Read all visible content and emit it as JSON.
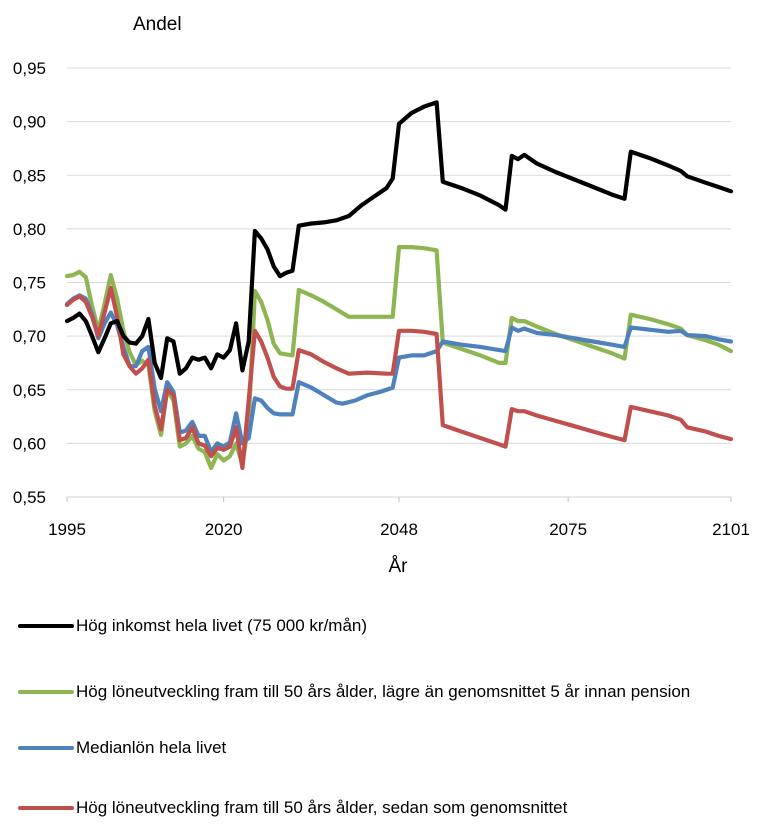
{
  "chart_data": {
    "type": "line",
    "ylabel": "Andel",
    "xlabel": "År",
    "xlim": [
      1995,
      2101
    ],
    "ylim": [
      0.55,
      0.95
    ],
    "xticks": [
      1995,
      2020,
      2048,
      2075,
      2101
    ],
    "yticks": [
      "0,95",
      "0,90",
      "0,85",
      "0,80",
      "0,75",
      "0,70",
      "0,65",
      "0,60",
      "0,55"
    ],
    "ytick_values": [
      0.95,
      0.9,
      0.85,
      0.8,
      0.75,
      0.7,
      0.65,
      0.6,
      0.55
    ],
    "grid": "horizontal",
    "legend_position": "bottom",
    "series": [
      {
        "name": "Hög inkomst hela livet (75 000 kr/mån)",
        "color": "#000000",
        "points": [
          [
            1995,
            0.714
          ],
          [
            1996,
            0.717
          ],
          [
            1997,
            0.721
          ],
          [
            1998,
            0.714
          ],
          [
            1999,
            0.7
          ],
          [
            2000,
            0.685
          ],
          [
            2001,
            0.698
          ],
          [
            2002,
            0.712
          ],
          [
            2003,
            0.714
          ],
          [
            2004,
            0.7
          ],
          [
            2005,
            0.694
          ],
          [
            2006,
            0.693
          ],
          [
            2007,
            0.7
          ],
          [
            2008,
            0.716
          ],
          [
            2009,
            0.675
          ],
          [
            2010,
            0.661
          ],
          [
            2011,
            0.698
          ],
          [
            2012,
            0.695
          ],
          [
            2013,
            0.665
          ],
          [
            2014,
            0.67
          ],
          [
            2015,
            0.68
          ],
          [
            2016,
            0.678
          ],
          [
            2017,
            0.68
          ],
          [
            2018,
            0.67
          ],
          [
            2019,
            0.683
          ],
          [
            2020,
            0.68
          ],
          [
            2021,
            0.687
          ],
          [
            2022,
            0.712
          ],
          [
            2023,
            0.668
          ],
          [
            2024,
            0.695
          ],
          [
            2025,
            0.798
          ],
          [
            2026,
            0.791
          ],
          [
            2027,
            0.781
          ],
          [
            2028,
            0.765
          ],
          [
            2029,
            0.756
          ],
          [
            2030,
            0.759
          ],
          [
            2031,
            0.761
          ],
          [
            2032,
            0.803
          ],
          [
            2034,
            0.805
          ],
          [
            2036,
            0.806
          ],
          [
            2038,
            0.808
          ],
          [
            2040,
            0.812
          ],
          [
            2042,
            0.822
          ],
          [
            2044,
            0.83
          ],
          [
            2046,
            0.838
          ],
          [
            2047,
            0.847
          ],
          [
            2048,
            0.898
          ],
          [
            2050,
            0.908
          ],
          [
            2052,
            0.914
          ],
          [
            2054,
            0.918
          ],
          [
            2055,
            0.844
          ],
          [
            2058,
            0.838
          ],
          [
            2061,
            0.831
          ],
          [
            2064,
            0.822
          ],
          [
            2065,
            0.818
          ],
          [
            2066,
            0.868
          ],
          [
            2067,
            0.865
          ],
          [
            2068,
            0.869
          ],
          [
            2070,
            0.861
          ],
          [
            2073,
            0.853
          ],
          [
            2076,
            0.846
          ],
          [
            2079,
            0.839
          ],
          [
            2082,
            0.832
          ],
          [
            2084,
            0.828
          ],
          [
            2085,
            0.872
          ],
          [
            2088,
            0.866
          ],
          [
            2091,
            0.859
          ],
          [
            2093,
            0.854
          ],
          [
            2094,
            0.849
          ],
          [
            2097,
            0.843
          ],
          [
            2099,
            0.839
          ],
          [
            2101,
            0.835
          ]
        ]
      },
      {
        "name": "Hög löneutveckling fram till 50 års ålder, lägre än genomsnittet 5 år innan pension",
        "color": "#8DB653",
        "points": [
          [
            1995,
            0.756
          ],
          [
            1996,
            0.757
          ],
          [
            1997,
            0.76
          ],
          [
            1998,
            0.755
          ],
          [
            1999,
            0.728
          ],
          [
            2000,
            0.705
          ],
          [
            2001,
            0.73
          ],
          [
            2002,
            0.757
          ],
          [
            2003,
            0.735
          ],
          [
            2004,
            0.705
          ],
          [
            2005,
            0.685
          ],
          [
            2006,
            0.673
          ],
          [
            2007,
            0.677
          ],
          [
            2008,
            0.673
          ],
          [
            2009,
            0.63
          ],
          [
            2010,
            0.608
          ],
          [
            2011,
            0.65
          ],
          [
            2012,
            0.64
          ],
          [
            2013,
            0.597
          ],
          [
            2014,
            0.6
          ],
          [
            2015,
            0.607
          ],
          [
            2016,
            0.595
          ],
          [
            2017,
            0.592
          ],
          [
            2018,
            0.577
          ],
          [
            2019,
            0.59
          ],
          [
            2020,
            0.584
          ],
          [
            2021,
            0.588
          ],
          [
            2022,
            0.6
          ],
          [
            2023,
            0.58
          ],
          [
            2024,
            0.62
          ],
          [
            2025,
            0.742
          ],
          [
            2026,
            0.732
          ],
          [
            2027,
            0.715
          ],
          [
            2028,
            0.693
          ],
          [
            2029,
            0.684
          ],
          [
            2030,
            0.683
          ],
          [
            2031,
            0.682
          ],
          [
            2032,
            0.743
          ],
          [
            2034,
            0.738
          ],
          [
            2036,
            0.732
          ],
          [
            2038,
            0.725
          ],
          [
            2040,
            0.718
          ],
          [
            2043,
            0.718
          ],
          [
            2046,
            0.718
          ],
          [
            2047,
            0.718
          ],
          [
            2048,
            0.783
          ],
          [
            2050,
            0.783
          ],
          [
            2052,
            0.782
          ],
          [
            2054,
            0.78
          ],
          [
            2055,
            0.694
          ],
          [
            2058,
            0.688
          ],
          [
            2061,
            0.682
          ],
          [
            2064,
            0.675
          ],
          [
            2065,
            0.675
          ],
          [
            2066,
            0.717
          ],
          [
            2067,
            0.714
          ],
          [
            2068,
            0.714
          ],
          [
            2070,
            0.709
          ],
          [
            2073,
            0.702
          ],
          [
            2076,
            0.696
          ],
          [
            2079,
            0.69
          ],
          [
            2082,
            0.684
          ],
          [
            2084,
            0.679
          ],
          [
            2085,
            0.72
          ],
          [
            2088,
            0.716
          ],
          [
            2091,
            0.711
          ],
          [
            2093,
            0.707
          ],
          [
            2094,
            0.701
          ],
          [
            2097,
            0.696
          ],
          [
            2099,
            0.692
          ],
          [
            2101,
            0.686
          ]
        ]
      },
      {
        "name": "Medianlön hela livet",
        "color": "#4F81BD",
        "points": [
          [
            1995,
            0.73
          ],
          [
            1996,
            0.735
          ],
          [
            1997,
            0.738
          ],
          [
            1998,
            0.735
          ],
          [
            1999,
            0.72
          ],
          [
            2000,
            0.698
          ],
          [
            2001,
            0.712
          ],
          [
            2002,
            0.722
          ],
          [
            2003,
            0.71
          ],
          [
            2004,
            0.69
          ],
          [
            2005,
            0.672
          ],
          [
            2006,
            0.672
          ],
          [
            2007,
            0.686
          ],
          [
            2008,
            0.69
          ],
          [
            2009,
            0.651
          ],
          [
            2010,
            0.63
          ],
          [
            2011,
            0.657
          ],
          [
            2012,
            0.648
          ],
          [
            2013,
            0.61
          ],
          [
            2014,
            0.612
          ],
          [
            2015,
            0.62
          ],
          [
            2016,
            0.607
          ],
          [
            2017,
            0.607
          ],
          [
            2018,
            0.592
          ],
          [
            2019,
            0.6
          ],
          [
            2020,
            0.597
          ],
          [
            2021,
            0.601
          ],
          [
            2022,
            0.628
          ],
          [
            2023,
            0.6
          ],
          [
            2024,
            0.605
          ],
          [
            2025,
            0.642
          ],
          [
            2026,
            0.64
          ],
          [
            2027,
            0.633
          ],
          [
            2028,
            0.628
          ],
          [
            2029,
            0.627
          ],
          [
            2030,
            0.627
          ],
          [
            2031,
            0.627
          ],
          [
            2032,
            0.657
          ],
          [
            2034,
            0.652
          ],
          [
            2036,
            0.645
          ],
          [
            2038,
            0.638
          ],
          [
            2039,
            0.637
          ],
          [
            2041,
            0.64
          ],
          [
            2043,
            0.645
          ],
          [
            2045,
            0.648
          ],
          [
            2047,
            0.652
          ],
          [
            2048,
            0.68
          ],
          [
            2050,
            0.682
          ],
          [
            2052,
            0.682
          ],
          [
            2054,
            0.686
          ],
          [
            2055,
            0.695
          ],
          [
            2058,
            0.692
          ],
          [
            2061,
            0.69
          ],
          [
            2064,
            0.687
          ],
          [
            2065,
            0.686
          ],
          [
            2066,
            0.708
          ],
          [
            2067,
            0.705
          ],
          [
            2068,
            0.707
          ],
          [
            2070,
            0.703
          ],
          [
            2073,
            0.701
          ],
          [
            2076,
            0.698
          ],
          [
            2079,
            0.695
          ],
          [
            2082,
            0.692
          ],
          [
            2084,
            0.69
          ],
          [
            2085,
            0.708
          ],
          [
            2088,
            0.706
          ],
          [
            2091,
            0.704
          ],
          [
            2093,
            0.705
          ],
          [
            2094,
            0.701
          ],
          [
            2097,
            0.7
          ],
          [
            2099,
            0.697
          ],
          [
            2101,
            0.695
          ]
        ]
      },
      {
        "name": "Hög löneutveckling fram till 50 års ålder, sedan som genomsnittet",
        "color": "#C0504D",
        "points": [
          [
            1995,
            0.729
          ],
          [
            1996,
            0.734
          ],
          [
            1997,
            0.737
          ],
          [
            1998,
            0.732
          ],
          [
            1999,
            0.718
          ],
          [
            2000,
            0.7
          ],
          [
            2001,
            0.722
          ],
          [
            2002,
            0.745
          ],
          [
            2003,
            0.718
          ],
          [
            2004,
            0.683
          ],
          [
            2005,
            0.672
          ],
          [
            2006,
            0.665
          ],
          [
            2007,
            0.67
          ],
          [
            2008,
            0.678
          ],
          [
            2009,
            0.635
          ],
          [
            2010,
            0.613
          ],
          [
            2011,
            0.65
          ],
          [
            2012,
            0.645
          ],
          [
            2013,
            0.603
          ],
          [
            2014,
            0.605
          ],
          [
            2015,
            0.615
          ],
          [
            2016,
            0.6
          ],
          [
            2017,
            0.598
          ],
          [
            2018,
            0.588
          ],
          [
            2019,
            0.596
          ],
          [
            2020,
            0.594
          ],
          [
            2021,
            0.597
          ],
          [
            2022,
            0.615
          ],
          [
            2023,
            0.577
          ],
          [
            2024,
            0.64
          ],
          [
            2025,
            0.705
          ],
          [
            2026,
            0.695
          ],
          [
            2027,
            0.68
          ],
          [
            2028,
            0.662
          ],
          [
            2029,
            0.653
          ],
          [
            2030,
            0.651
          ],
          [
            2031,
            0.651
          ],
          [
            2032,
            0.687
          ],
          [
            2034,
            0.683
          ],
          [
            2036,
            0.676
          ],
          [
            2038,
            0.67
          ],
          [
            2040,
            0.665
          ],
          [
            2043,
            0.666
          ],
          [
            2046,
            0.665
          ],
          [
            2047,
            0.665
          ],
          [
            2048,
            0.705
          ],
          [
            2050,
            0.705
          ],
          [
            2052,
            0.704
          ],
          [
            2054,
            0.702
          ],
          [
            2055,
            0.617
          ],
          [
            2058,
            0.611
          ],
          [
            2061,
            0.605
          ],
          [
            2064,
            0.599
          ],
          [
            2065,
            0.597
          ],
          [
            2066,
            0.632
          ],
          [
            2067,
            0.63
          ],
          [
            2068,
            0.63
          ],
          [
            2070,
            0.626
          ],
          [
            2073,
            0.621
          ],
          [
            2076,
            0.616
          ],
          [
            2079,
            0.611
          ],
          [
            2082,
            0.606
          ],
          [
            2084,
            0.603
          ],
          [
            2085,
            0.634
          ],
          [
            2088,
            0.63
          ],
          [
            2091,
            0.626
          ],
          [
            2093,
            0.622
          ],
          [
            2094,
            0.615
          ],
          [
            2097,
            0.611
          ],
          [
            2099,
            0.607
          ],
          [
            2101,
            0.604
          ]
        ]
      }
    ]
  },
  "legend": {
    "items": [
      {
        "label": "Hög inkomst hela livet (75 000 kr/mån)",
        "color": "#000000"
      },
      {
        "label": "Hög löneutveckling fram till 50 års ålder, lägre än genomsnittet 5 år innan pension",
        "color": "#8DB653"
      },
      {
        "label": "Medianlön hela livet",
        "color": "#4F81BD"
      },
      {
        "label": "Hög löneutveckling fram till 50 års ålder, sedan som genomsnittet",
        "color": "#C0504D"
      }
    ]
  }
}
